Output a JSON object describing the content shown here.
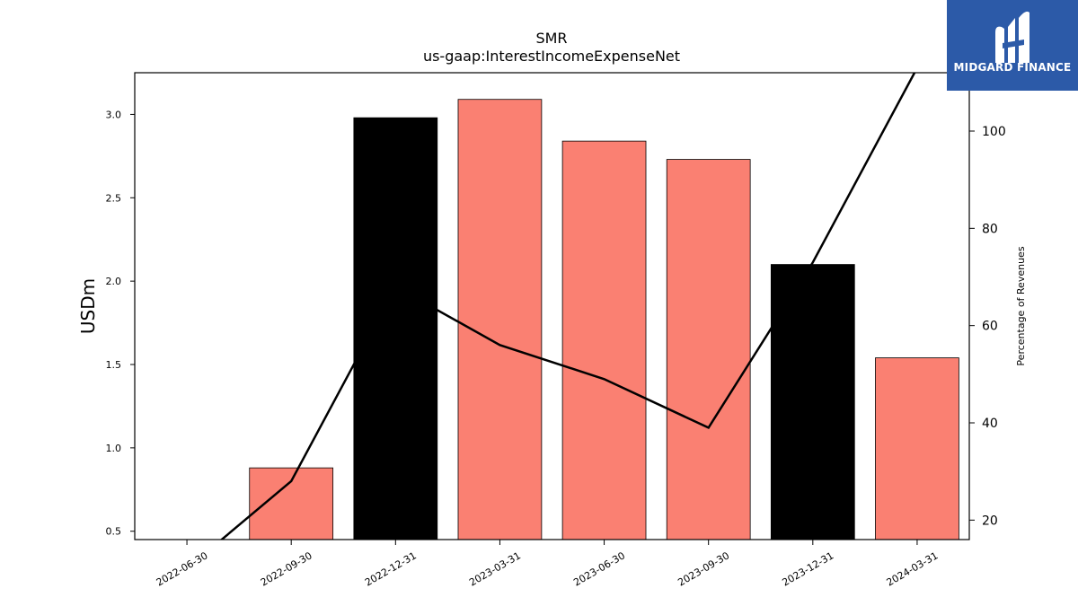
{
  "logo": {
    "text": "MIDGARD FINANCE",
    "background": "#2c5aa8",
    "icon": "midgard-m-logo-icon"
  },
  "chart_data": {
    "type": "bar",
    "title": "SMR",
    "subtitle": "us-gaap:InterestIncomeExpenseNet",
    "ylabel": "USDm",
    "y2label": "Percentage of Revenues",
    "categories": [
      "2022-06-30",
      "2022-09-30",
      "2022-12-31",
      "2023-03-31",
      "2023-06-30",
      "2023-09-30",
      "2023-12-31",
      "2024-03-31"
    ],
    "ylim": [
      0.45,
      3.25
    ],
    "yticks": [
      0.5,
      1.0,
      1.5,
      2.0,
      2.5,
      3.0
    ],
    "y2lim": [
      16,
      112
    ],
    "y2ticks": [
      20,
      40,
      60,
      80,
      100
    ],
    "series": [
      {
        "type": "bar",
        "values": [
          null,
          0.88,
          2.98,
          3.09,
          2.84,
          2.73,
          2.1,
          1.54
        ],
        "colors": [
          "#fa8072",
          "#fa8072",
          "#000000",
          "#fa8072",
          "#fa8072",
          "#fa8072",
          "#000000",
          "#fa8072"
        ]
      },
      {
        "type": "line",
        "axis": "right",
        "color": "#000000",
        "values": [
          null,
          28.0,
          68.0,
          56.0,
          49.0,
          39.0,
          73.0,
          113.0
        ]
      }
    ],
    "grid": false,
    "legend": "none"
  }
}
